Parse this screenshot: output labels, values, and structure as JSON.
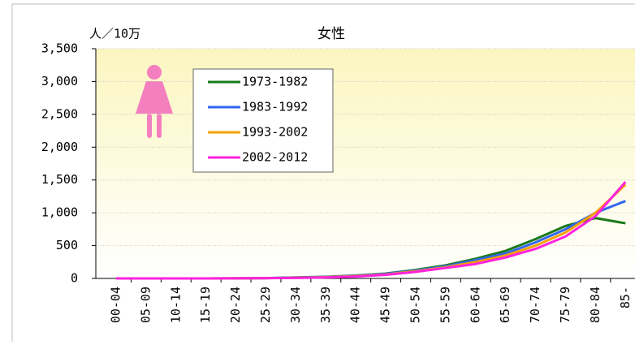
{
  "chart_data": {
    "type": "line",
    "title": "女性",
    "y_label": "人／10万",
    "categories": [
      "00-04",
      "05-09",
      "10-14",
      "15-19",
      "20-24",
      "25-29",
      "30-34",
      "35-39",
      "40-44",
      "45-49",
      "50-54",
      "55-59",
      "60-64",
      "65-69",
      "70-74",
      "75-79",
      "80-84",
      "85-"
    ],
    "series": [
      {
        "name": "1973-1982",
        "color": "#1a7a1a",
        "values": [
          0,
          0,
          0,
          0,
          2,
          5,
          15,
          25,
          45,
          75,
          130,
          200,
          300,
          420,
          600,
          800,
          920,
          840
        ]
      },
      {
        "name": "1983-1992",
        "color": "#3366ee",
        "values": [
          0,
          0,
          0,
          0,
          2,
          5,
          12,
          22,
          40,
          70,
          120,
          185,
          280,
          380,
          550,
          750,
          1000,
          1180
        ]
      },
      {
        "name": "1993-2002",
        "color": "#f5a000",
        "values": [
          0,
          0,
          0,
          0,
          2,
          4,
          10,
          18,
          35,
          60,
          110,
          170,
          250,
          350,
          500,
          700,
          1000,
          1430
        ]
      },
      {
        "name": "2002-2012",
        "color": "#ff22dd",
        "values": [
          0,
          0,
          0,
          0,
          2,
          4,
          8,
          15,
          30,
          55,
          100,
          160,
          220,
          320,
          450,
          640,
          950,
          1470
        ]
      }
    ],
    "ylim": [
      0,
      3500
    ],
    "yticks": [
      0,
      500,
      {
        "value": 1000,
        "label": "1,000"
      },
      {
        "value": 1500,
        "label": "1,500"
      },
      {
        "value": 2000,
        "label": "2,000"
      },
      {
        "value": 2500,
        "label": "2,500"
      },
      {
        "value": 3000,
        "label": "3,000"
      },
      {
        "value": 3500,
        "label": "3,500"
      }
    ],
    "grid": true
  }
}
